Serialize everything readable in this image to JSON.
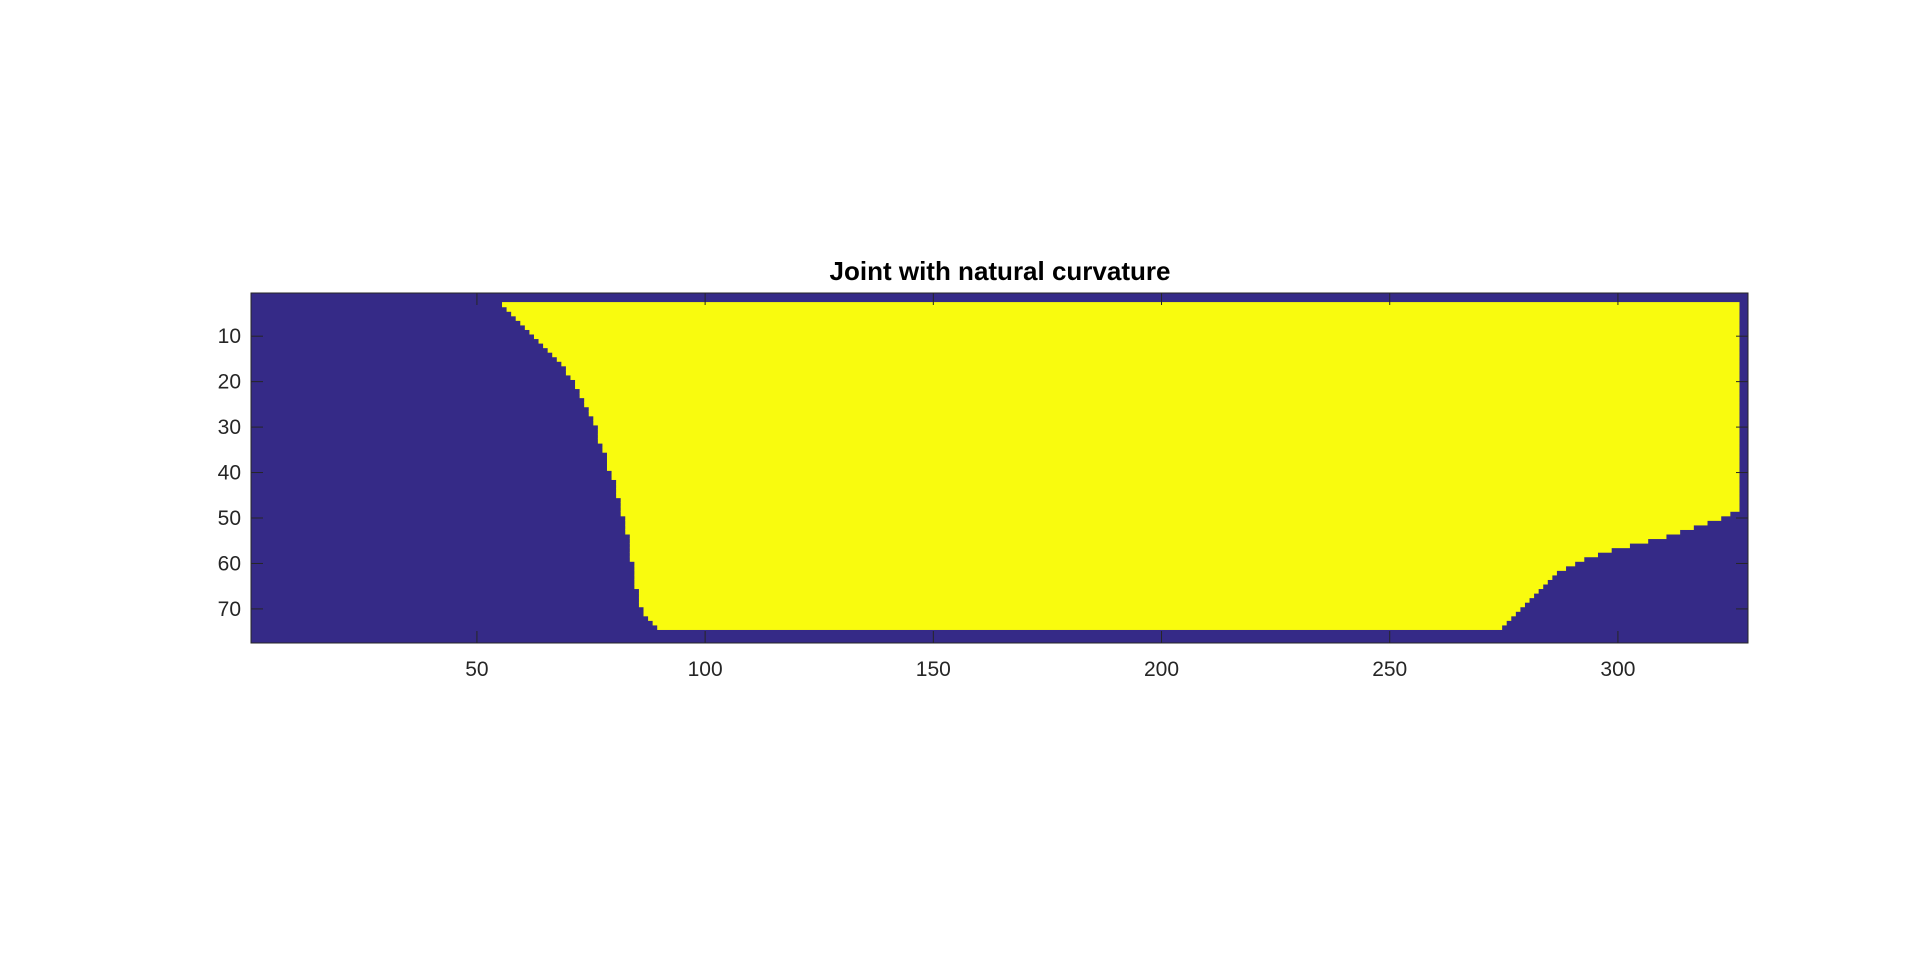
{
  "chart_data": {
    "type": "heatmap",
    "title": "Joint with natural curvature",
    "xlabel": "",
    "ylabel": "",
    "xlim": [
      0.5,
      328.5
    ],
    "ylim": [
      0.5,
      77.5
    ],
    "y_reversed": true,
    "x_ticks": [
      50,
      100,
      150,
      200,
      250,
      300
    ],
    "y_ticks": [
      10,
      20,
      30,
      40,
      50,
      60,
      70
    ],
    "colors": {
      "background": "#352a87",
      "foreground": "#f9fb0e"
    },
    "values_legend": {
      "background_value": 0,
      "foreground_value": 1
    },
    "foreground_region": {
      "top_row": 3,
      "bottom_row": 74,
      "left_boundary": [
        [
          3,
          56
        ],
        [
          4,
          57
        ],
        [
          5,
          58
        ],
        [
          6,
          59
        ],
        [
          7,
          60
        ],
        [
          8,
          61
        ],
        [
          9,
          62
        ],
        [
          10,
          63
        ],
        [
          11,
          64
        ],
        [
          12,
          65
        ],
        [
          13,
          66
        ],
        [
          14,
          67
        ],
        [
          15,
          68
        ],
        [
          16,
          69
        ],
        [
          17,
          70
        ],
        [
          18,
          70
        ],
        [
          19,
          71
        ],
        [
          20,
          72
        ],
        [
          22,
          73
        ],
        [
          24,
          74
        ],
        [
          26,
          75
        ],
        [
          28,
          76
        ],
        [
          30,
          77
        ],
        [
          32,
          77
        ],
        [
          34,
          78
        ],
        [
          36,
          79
        ],
        [
          38,
          79
        ],
        [
          40,
          80
        ],
        [
          42,
          81
        ],
        [
          44,
          81
        ],
        [
          46,
          82
        ],
        [
          48,
          82
        ],
        [
          50,
          83
        ],
        [
          52,
          83
        ],
        [
          54,
          84
        ],
        [
          56,
          84
        ],
        [
          58,
          84
        ],
        [
          60,
          85
        ],
        [
          62,
          85
        ],
        [
          64,
          85
        ],
        [
          66,
          86
        ],
        [
          68,
          86
        ],
        [
          70,
          87
        ],
        [
          72,
          88
        ],
        [
          73,
          89
        ],
        [
          74,
          90
        ]
      ],
      "right_boundary": [
        [
          3,
          326
        ],
        [
          48,
          326
        ],
        [
          49,
          324
        ],
        [
          50,
          322
        ],
        [
          51,
          319
        ],
        [
          52,
          316
        ],
        [
          53,
          313
        ],
        [
          54,
          310
        ],
        [
          55,
          306
        ],
        [
          56,
          302
        ],
        [
          57,
          298
        ],
        [
          58,
          295
        ],
        [
          59,
          292
        ],
        [
          60,
          290
        ],
        [
          61,
          288
        ],
        [
          62,
          286
        ],
        [
          63,
          285
        ],
        [
          64,
          284
        ],
        [
          65,
          283
        ],
        [
          66,
          282
        ],
        [
          67,
          281
        ],
        [
          68,
          280
        ],
        [
          69,
          279
        ],
        [
          70,
          278
        ],
        [
          71,
          277
        ],
        [
          72,
          276
        ],
        [
          73,
          275
        ],
        [
          74,
          274
        ]
      ]
    }
  }
}
